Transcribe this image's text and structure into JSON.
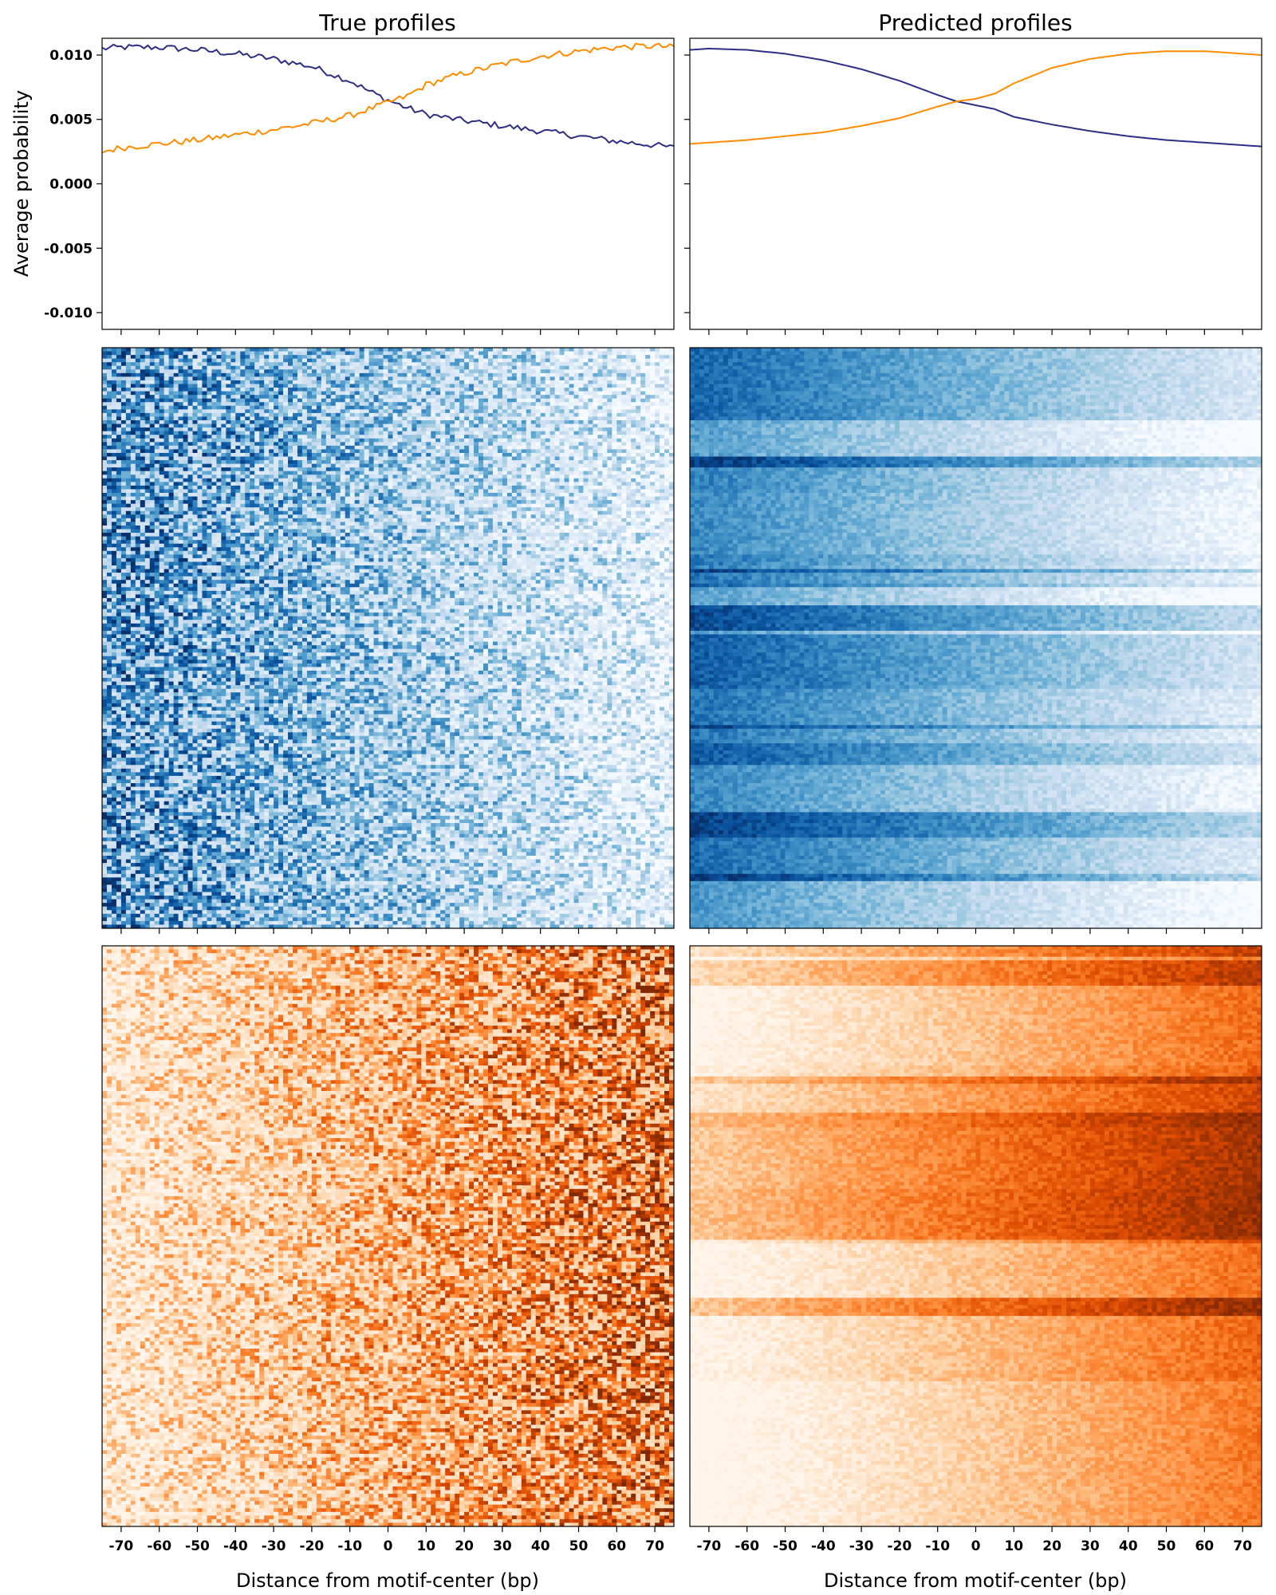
{
  "colors": {
    "forward_strand": "#2e2d86",
    "reverse_strand": "#ff8c00",
    "heatmap_top_cmap": "Blues",
    "heatmap_bottom_cmap": "Oranges"
  },
  "titles": {
    "left": "True profiles",
    "right": "Predicted profiles"
  },
  "labels": {
    "ylabel": "Average probability",
    "xlabel_left": "Distance from motif-center (bp)",
    "xlabel_right": "Distance from motif-center (bp)"
  },
  "y_ticks": [
    "0.010",
    "0.005",
    "0.000",
    "-0.005",
    "-0.010"
  ],
  "x_ticks": [
    "-70",
    "-60",
    "-50",
    "-40",
    "-30",
    "-20",
    "-10",
    "0",
    "10",
    "20",
    "30",
    "40",
    "50",
    "60",
    "70"
  ],
  "chart_data": [
    {
      "type": "line",
      "panel": "true-profiles-average",
      "title": "True profiles",
      "ylabel": "Average probability",
      "x": [
        -75,
        -70,
        -60,
        -50,
        -40,
        -30,
        -20,
        -10,
        -5,
        0,
        5,
        10,
        20,
        30,
        40,
        50,
        60,
        70,
        75
      ],
      "xlim": [
        -75,
        75
      ],
      "ylim": [
        -0.0113,
        0.0113
      ],
      "series": [
        {
          "values": [
            0.0105,
            0.0106,
            0.0106,
            0.0104,
            0.0101,
            0.0097,
            0.0091,
            0.008,
            0.0072,
            0.0065,
            0.0059,
            0.0054,
            0.0049,
            0.0045,
            0.0041,
            0.0037,
            0.0033,
            0.003,
            0.0028
          ]
        },
        {
          "values": [
            0.0025,
            0.0028,
            0.0031,
            0.0034,
            0.0038,
            0.0042,
            0.0047,
            0.0053,
            0.0058,
            0.0063,
            0.0068,
            0.0077,
            0.0086,
            0.0093,
            0.0099,
            0.0103,
            0.0106,
            0.0107,
            0.0106
          ]
        }
      ]
    },
    {
      "type": "line",
      "panel": "predicted-profiles-average",
      "title": "Predicted profiles",
      "x": [
        -75,
        -70,
        -60,
        -50,
        -40,
        -30,
        -20,
        -10,
        -5,
        0,
        5,
        10,
        20,
        30,
        40,
        50,
        60,
        70,
        75
      ],
      "xlim": [
        -75,
        75
      ],
      "ylim": [
        -0.0113,
        0.0113
      ],
      "series": [
        {
          "values": [
            0.0104,
            0.0105,
            0.0104,
            0.0101,
            0.0096,
            0.0089,
            0.008,
            0.0069,
            0.0064,
            0.0061,
            0.0058,
            0.0052,
            0.0046,
            0.0041,
            0.0037,
            0.0034,
            0.0032,
            0.003,
            0.0029
          ]
        },
        {
          "values": [
            0.0031,
            0.0032,
            0.0034,
            0.0037,
            0.004,
            0.0045,
            0.0051,
            0.006,
            0.0064,
            0.0066,
            0.007,
            0.0078,
            0.009,
            0.0097,
            0.0101,
            0.0103,
            0.0103,
            0.0101,
            0.01
          ]
        }
      ]
    },
    {
      "type": "heatmap",
      "panel": "true-profiles-forward",
      "colormap": "Blues",
      "xlim": [
        -75,
        75
      ],
      "gradient": "high-left-low-right"
    },
    {
      "type": "heatmap",
      "panel": "predicted-profiles-forward",
      "colormap": "Blues",
      "xlim": [
        -75,
        75
      ],
      "gradient": "high-left-low-right"
    },
    {
      "type": "heatmap",
      "panel": "true-profiles-reverse",
      "colormap": "Oranges",
      "xlim": [
        -75,
        75
      ],
      "gradient": "low-left-high-right"
    },
    {
      "type": "heatmap",
      "panel": "predicted-profiles-reverse",
      "colormap": "Oranges",
      "xlim": [
        -75,
        75
      ],
      "gradient": "low-left-high-right"
    }
  ]
}
